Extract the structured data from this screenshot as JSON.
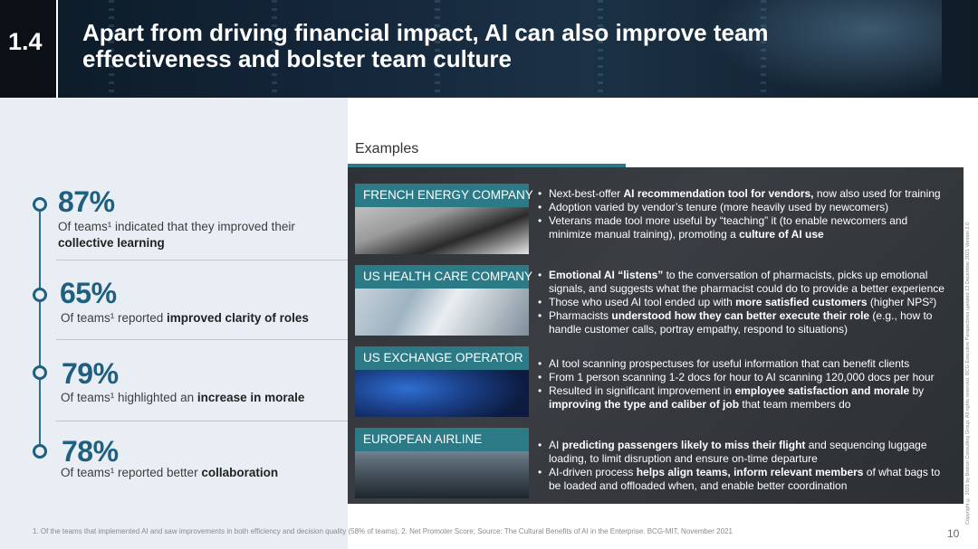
{
  "header": {
    "section_number": "1.4",
    "title": "Apart from driving financial impact, AI can also improve team effectiveness and bolster team culture"
  },
  "stats": [
    {
      "percent": "87%",
      "desc_prefix": "Of teams¹ indicated that they improved their ",
      "desc_bold": "collective learning"
    },
    {
      "percent": "65%",
      "desc_prefix": "Of teams¹ reported ",
      "desc_bold": "improved clarity of roles"
    },
    {
      "percent": "79%",
      "desc_prefix": "Of teams¹ highlighted an ",
      "desc_bold": "increase in morale"
    },
    {
      "percent": "78%",
      "desc_prefix": "Of teams¹ reported better ",
      "desc_bold": "collaboration"
    }
  ],
  "examples": {
    "label": "Examples",
    "cases": [
      {
        "company": "FRENCH ENERGY COMPANY",
        "bullets": [
          {
            "a": "Next-best-offer ",
            "b": "AI recommendation tool for vendors,",
            "c": " now also used for training"
          },
          {
            "a": "Adoption varied by vendor’s tenure (more heavily used by newcomers)",
            "b": "",
            "c": ""
          },
          {
            "a": "Veterans made tool more useful by “teaching” it (to enable newcomers and minimize manual training), promoting a ",
            "b": "culture of AI use",
            "c": ""
          }
        ]
      },
      {
        "company": "US HEALTH CARE COMPANY",
        "bullets": [
          {
            "a": "",
            "b": "Emotional AI “listens”",
            "c": " to the conversation of pharmacists, picks up emotional signals, and suggests what the pharmacist could do to provide a better experience"
          },
          {
            "a": "Those who used AI tool ended up with ",
            "b": "more satisfied customers",
            "c": " (higher NPS²)"
          },
          {
            "a": "Pharmacists ",
            "b": "understood how they can better execute their role",
            "c": " (e.g., how to handle customer calls, portray empathy, respond to situations)"
          }
        ]
      },
      {
        "company": "US EXCHANGE OPERATOR",
        "bullets": [
          {
            "a": "AI tool scanning prospectuses for useful information that can benefit clients",
            "b": "",
            "c": ""
          },
          {
            "a": "From 1 person scanning 1-2 docs for hour to AI scanning 120,000 docs per hour",
            "b": "",
            "c": ""
          },
          {
            "a": "Resulted in significant improvement in ",
            "b": "employee satisfaction and morale",
            "c": " by ",
            "d": "improving the type and caliber of job",
            "e": " that team members do"
          }
        ]
      },
      {
        "company": "EUROPEAN AIRLINE",
        "bullets": [
          {
            "a": "AI ",
            "b": "predicting passengers likely to miss their flight",
            "c": " and sequencing luggage loading, to limit disruption and ensure on-time departure"
          },
          {
            "a": "AI-driven process ",
            "b": "helps align teams, inform relevant members",
            "c": " of what bags to be loaded and offloaded when, and enable better coordination"
          }
        ]
      }
    ]
  },
  "footnote": "1. Of the teams that implemented AI and saw improvements in both efficiency and decision quality (58% of teams); 2. Net Promoter Score; Source: The Cultural Benefits of AI in the Enterprise. BCG-MIT, November 2021",
  "copyright": "Copyright © 2021 by Boston Consulting Group. All rights reserved. BCG Executive Perspectives updated 13 December 2021 Version 2.0",
  "page_number": "10"
}
